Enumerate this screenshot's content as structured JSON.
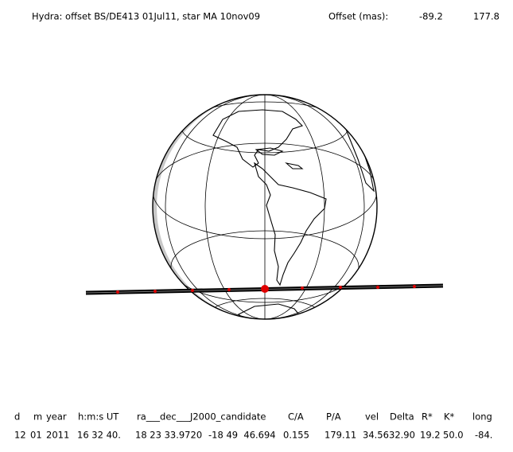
{
  "header": {
    "title": "Hydra: offset BS/DE413 01Jul11, star MA 10nov09",
    "offset_label": "Offset (mas):",
    "offset_values": [
      "-89.2",
      "177.8"
    ]
  },
  "table": {
    "columns": [
      "d",
      "m",
      "year",
      "h:m:s UT",
      "ra___dec___J2000_candidate",
      "C/A",
      "P/A",
      "vel",
      "Delta",
      "R*",
      "K*",
      "long"
    ],
    "row": [
      "12",
      "01",
      "2011",
      "16 32 40.",
      "18 23 33.9720",
      "-18 49  46.694",
      "0.155",
      "179.11",
      "34.56",
      "32.90",
      "19.2",
      "50.0",
      "-84."
    ]
  }
}
